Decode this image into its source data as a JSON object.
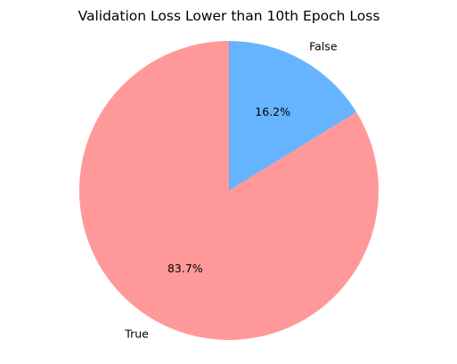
{
  "chart_data": {
    "type": "pie",
    "title": "Validation Loss Lower than 10th Epoch Loss",
    "start_angle_deg": 90,
    "direction": "counterclockwise",
    "slices": [
      {
        "label": "True",
        "percent_label": "83.7%",
        "value": 83.7,
        "color": "#ff9999"
      },
      {
        "label": "False",
        "percent_label": "16.2%",
        "value": 16.2,
        "color": "#66b3ff"
      }
    ]
  }
}
